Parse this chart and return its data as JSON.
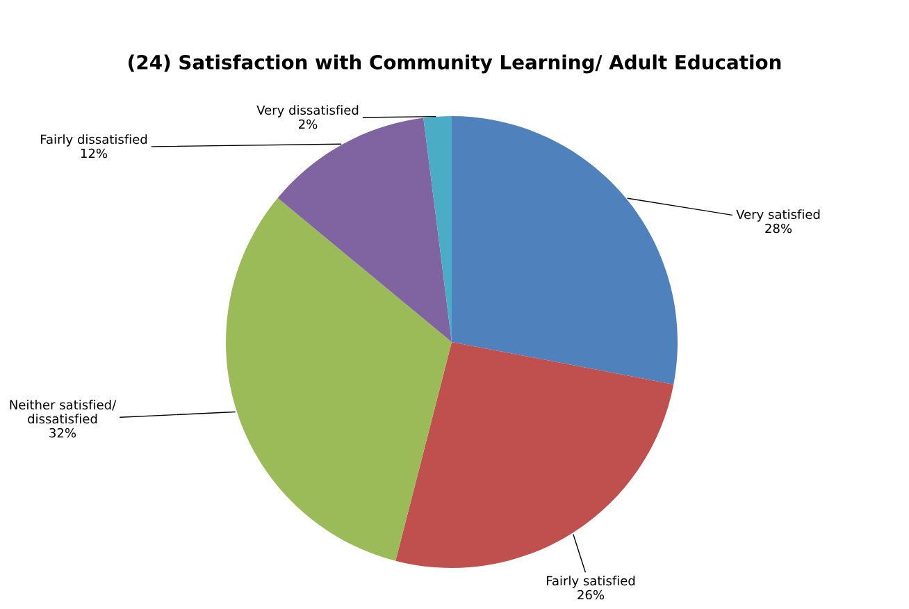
{
  "chart_data": {
    "type": "pie",
    "title": "(24) Satisfaction with Community Learning/ Adult Education",
    "categories": [
      "Very satisfied",
      "Fairly satisfied",
      "Neither satisfied/\ndissatisfied",
      "Fairly dissatisfied",
      "Very dissatisfied"
    ],
    "values": [
      28,
      26,
      32,
      12,
      2
    ],
    "value_labels": [
      "28%",
      "26%",
      "32%",
      "12%",
      "2%"
    ],
    "colors": [
      "#4f81bd",
      "#c0504d",
      "#9bbb59",
      "#8064a2",
      "#4bacc6"
    ],
    "legend": false
  }
}
